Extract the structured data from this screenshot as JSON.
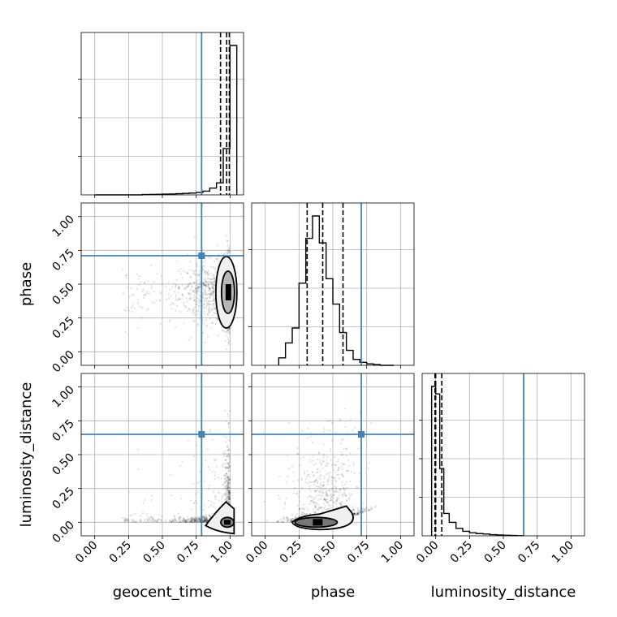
{
  "chart_data": {
    "type": "corner",
    "parameters": [
      "geocent_time",
      "phase",
      "luminosity_distance"
    ],
    "axis_range": [
      -0.1,
      1.1
    ],
    "tick_values": [
      0.0,
      0.25,
      0.5,
      0.75,
      1.0
    ],
    "tick_labels": [
      "0.00",
      "0.25",
      "0.50",
      "0.75",
      "1.00"
    ],
    "truths": {
      "geocent_time": 0.79,
      "phase": 0.71,
      "luminosity_distance": 0.65
    },
    "truth_color": "#4682b4",
    "line_color": "#000000",
    "grid": true,
    "histograms": {
      "geocent_time": {
        "bin_edges": [
          0.0,
          0.05,
          0.1,
          0.15,
          0.2,
          0.25,
          0.3,
          0.35,
          0.4,
          0.45,
          0.5,
          0.55,
          0.6,
          0.65,
          0.7,
          0.75,
          0.8,
          0.85,
          0.9,
          0.95,
          1.0,
          1.05
        ],
        "counts": [
          0,
          0,
          0,
          0,
          0,
          0,
          0,
          0.002,
          0.003,
          0.004,
          0.005,
          0.006,
          0.008,
          0.01,
          0.012,
          0.016,
          0.025,
          0.045,
          0.08,
          0.31,
          1.0
        ],
        "quantiles": [
          0.93,
          0.975,
          0.995
        ]
      },
      "phase": {
        "bin_edges": [
          0.1,
          0.15,
          0.2,
          0.25,
          0.3,
          0.35,
          0.4,
          0.45,
          0.5,
          0.55,
          0.6,
          0.65,
          0.7,
          0.75,
          0.8,
          0.85,
          0.9,
          0.95
        ],
        "counts": [
          0.05,
          0.15,
          0.25,
          0.55,
          0.85,
          1.0,
          0.82,
          0.58,
          0.41,
          0.22,
          0.1,
          0.04,
          0.02,
          0.01,
          0.005,
          0,
          0
        ],
        "quantiles": [
          0.31,
          0.425,
          0.575
        ]
      },
      "luminosity_distance": {
        "bin_edges": [
          -0.03,
          0.0,
          0.03,
          0.06,
          0.1,
          0.15,
          0.2,
          0.25,
          0.3,
          0.35,
          0.4,
          0.45,
          0.5,
          0.55,
          0.6,
          0.65
        ],
        "counts": [
          1.0,
          0.95,
          0.45,
          0.15,
          0.09,
          0.05,
          0.03,
          0.02,
          0.015,
          0.012,
          0.008,
          0.006,
          0.004,
          0.002,
          0.001
        ],
        "quantiles": [
          -0.005,
          0.0,
          0.045
        ]
      }
    }
  }
}
